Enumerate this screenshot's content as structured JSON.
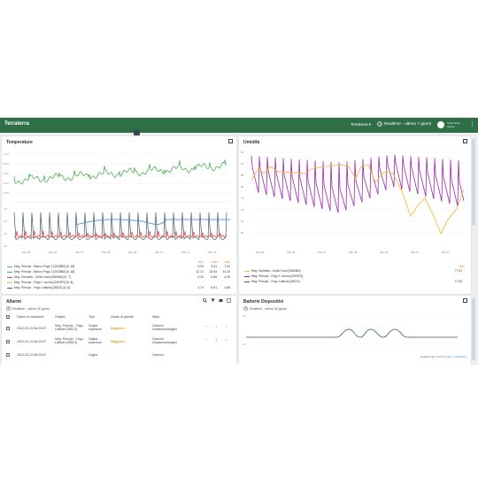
{
  "app": {
    "title": "Terraterra",
    "selector": "Terraterra ▾",
    "realtime": "Realtime - ultimo 7 giorni",
    "user_name": "Terra Terra",
    "user_role": "Utente"
  },
  "temperature": {
    "title": "Temperature",
    "x_ticks": [
      "Mar 05",
      "Mar 06",
      "Mar 07",
      "Mar 08",
      "Mar 09",
      "Mar 10",
      "Mar 11",
      "Mar 12"
    ],
    "y_ticks_top": [
      "17.0",
      "16.0",
      "15.0",
      "14.0",
      "13.0"
    ],
    "y_ticks_bottom": [
      "7.5",
      "5.0",
      "2.5",
      "0.0"
    ],
    "legend_headers": [
      "min",
      "max",
      "avg"
    ],
    "legend": [
      {
        "label": "Neg. Principi - Banco Frigo 1 [2028B0] [0..18]",
        "min": "4.94",
        "max": "8.11",
        "avg": "7.61",
        "color": "#5b9bd5"
      },
      {
        "label": "Neg. Principi - Banco Frigo 2 [2028B0] [0..18]",
        "min": "12.21",
        "max": "16.54",
        "avg": "14.18",
        "color": "#4caf50"
      },
      {
        "label": "Neg. Domatia - Cella Carni [2560BA] [0..7]",
        "min": "3.42",
        "max": "5.66",
        "avg": "4.09",
        "color": "#e53935"
      },
      {
        "label": "Neg. Principi - Frigo 1 cucina [2903F0] [0..8]",
        "min": "",
        "max": "",
        "avg": "",
        "color": "#f4b942"
      },
      {
        "label": "Neg. Principi - Frigo Latticini [28021] [0..8]",
        "min": "2.74",
        "max": "8.51",
        "avg": "4.55",
        "color": "#455a64"
      }
    ]
  },
  "humidity": {
    "title": "Umidità",
    "x_ticks": [
      "Mar 05",
      "Mar 06",
      "Mar 07",
      "Mar 08",
      "Mar 09",
      "Mar 10",
      "Mar 11"
    ],
    "y_ticks": [
      "95",
      "90",
      "85",
      "80",
      "75",
      "70",
      "65",
      "60"
    ],
    "legend_header": "avg",
    "legend": [
      {
        "label": "Neg. Domatia - Cella Carni [2560BA]",
        "avg": "77.91",
        "color": "#f4b942"
      },
      {
        "label": "Neg. Principi - Frigo 1 cucina [2903F0]",
        "avg": "",
        "color": "#9c27b0"
      },
      {
        "label": "Neg. Principi - Frigo Latticini [28021]",
        "avg": "77.95",
        "color": "#455a64"
      }
    ]
  },
  "alarms": {
    "title": "Allarmi",
    "subtitle": "Realtime - ultimo 30 giorni",
    "columns": [
      "Orario di creazione",
      "Origine",
      "Tipo",
      "Grado di gravità",
      "Stato"
    ],
    "rows": [
      {
        "time": "2022-03-11 08:29:57",
        "origin": "Neg. Principi - Frigo Latticini [28021]",
        "type": "Soglia superiore",
        "severity": "Maggiore",
        "status": "Cleared Unacknowledged"
      },
      {
        "time": "2022-03-11 08:29:57",
        "origin": "Neg. Principi - Frigo Latticini [28021]",
        "type": "Soglia superiore",
        "severity": "Maggiore",
        "status": "Cleared Unacknowledged"
      },
      {
        "time": "2022-03-11 08:29:57",
        "origin": "",
        "type": "Soglia",
        "severity": "",
        "status": "Cleared"
      }
    ]
  },
  "battery": {
    "title": "Batterie Dispositivi",
    "subtitle": "Realtime - ultimo 30 giorni",
    "y_ticks": [
      "3.4",
      "3.2"
    ],
    "footnote_prefix": "Overall: bat.v 3.3.0",
    "footnote_link": "Tenant e condizioni"
  },
  "colors": {
    "header": "#2e6f47",
    "accent_orange": "#e57f23",
    "warning": "#e1a72b"
  }
}
